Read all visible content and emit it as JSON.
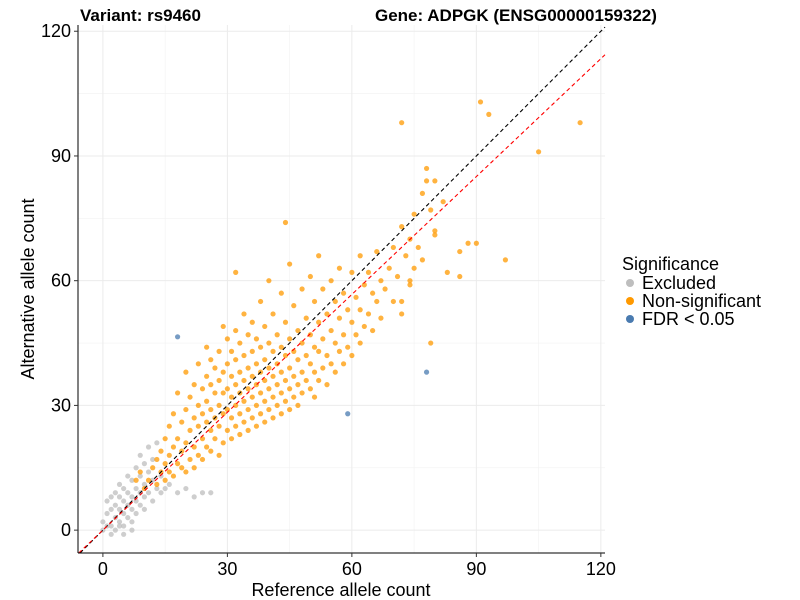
{
  "chart_data": {
    "type": "scatter",
    "title_left": "Variant: rs9460",
    "title_right": "Gene: ADPGK (ENSG00000159322)",
    "xlabel": "Reference allele count",
    "ylabel": "Alternative allele count",
    "xlim": [
      -6,
      121
    ],
    "ylim": [
      -5.5,
      121.5
    ],
    "xticks": [
      0,
      30,
      60,
      90,
      120
    ],
    "yticks": [
      0,
      30,
      60,
      90,
      120
    ],
    "xtick_labels": [
      "0",
      "30",
      "60",
      "90",
      "120"
    ],
    "ytick_labels": [
      "0",
      "30",
      "60",
      "90",
      "120"
    ],
    "grid": true,
    "reference_lines": [
      {
        "name": "identity",
        "slope": 1,
        "intercept": 0,
        "color": "#000000",
        "style": "dashed"
      },
      {
        "name": "fit",
        "slope": 0.945,
        "intercept": 0,
        "color": "#FF0000",
        "style": "dashed"
      }
    ],
    "legend": {
      "title": "Significance",
      "placement": "right",
      "entries": [
        {
          "label": "Excluded",
          "color": "#BEBEBE"
        },
        {
          "label": "Non-significant",
          "color": "#FF9900"
        },
        {
          "label": "FDR < 0.05",
          "color": "#4A7BB0"
        }
      ]
    },
    "series": [
      {
        "name": "Excluded",
        "color": "#BEBEBE",
        "points": [
          [
            0,
            2
          ],
          [
            1,
            4
          ],
          [
            1,
            7
          ],
          [
            2,
            1
          ],
          [
            2,
            5
          ],
          [
            2,
            8
          ],
          [
            3,
            3
          ],
          [
            3,
            6
          ],
          [
            3,
            9
          ],
          [
            4,
            2
          ],
          [
            4,
            5
          ],
          [
            4,
            8
          ],
          [
            4,
            11
          ],
          [
            5,
            1
          ],
          [
            5,
            4
          ],
          [
            5,
            7
          ],
          [
            5,
            10
          ],
          [
            6,
            3
          ],
          [
            6,
            6
          ],
          [
            6,
            9
          ],
          [
            6,
            13
          ],
          [
            7,
            2
          ],
          [
            7,
            5
          ],
          [
            7,
            8
          ],
          [
            7,
            12
          ],
          [
            8,
            4
          ],
          [
            8,
            7
          ],
          [
            8,
            10
          ],
          [
            8,
            15
          ],
          [
            9,
            6
          ],
          [
            9,
            9
          ],
          [
            9,
            13
          ],
          [
            9,
            18
          ],
          [
            10,
            5
          ],
          [
            10,
            8
          ],
          [
            10,
            11
          ],
          [
            10,
            16
          ],
          [
            11,
            9
          ],
          [
            11,
            14
          ],
          [
            11,
            20
          ],
          [
            12,
            7
          ],
          [
            12,
            12
          ],
          [
            12,
            17
          ],
          [
            13,
            10
          ],
          [
            13,
            21
          ],
          [
            14,
            9
          ],
          [
            14,
            13
          ],
          [
            15,
            10
          ],
          [
            16,
            11
          ],
          [
            18,
            9
          ],
          [
            20,
            10
          ],
          [
            22,
            8
          ],
          [
            24,
            9
          ],
          [
            26,
            9
          ],
          [
            3,
            0
          ],
          [
            5,
            -1
          ],
          [
            7,
            0
          ],
          [
            2,
            -1
          ],
          [
            1,
            1
          ],
          [
            0,
            0
          ],
          [
            4,
            1
          ]
        ]
      },
      {
        "name": "Non-significant",
        "color": "#FF9900",
        "points": [
          [
            10,
            10
          ],
          [
            11,
            12
          ],
          [
            12,
            15
          ],
          [
            13,
            11
          ],
          [
            13,
            17
          ],
          [
            14,
            14
          ],
          [
            14,
            19
          ],
          [
            15,
            12
          ],
          [
            15,
            16
          ],
          [
            15,
            22
          ],
          [
            16,
            14
          ],
          [
            16,
            18
          ],
          [
            16,
            25
          ],
          [
            17,
            13
          ],
          [
            17,
            20
          ],
          [
            17,
            28
          ],
          [
            18,
            16
          ],
          [
            18,
            22
          ],
          [
            18,
            33
          ],
          [
            19,
            15
          ],
          [
            19,
            19
          ],
          [
            19,
            26
          ],
          [
            20,
            14
          ],
          [
            20,
            21
          ],
          [
            20,
            29
          ],
          [
            20,
            38
          ],
          [
            21,
            17
          ],
          [
            21,
            24
          ],
          [
            21,
            32
          ],
          [
            22,
            15
          ],
          [
            22,
            20
          ],
          [
            22,
            27
          ],
          [
            22,
            35
          ],
          [
            23,
            18
          ],
          [
            23,
            25
          ],
          [
            23,
            30
          ],
          [
            23,
            40
          ],
          [
            24,
            17
          ],
          [
            24,
            22
          ],
          [
            24,
            28
          ],
          [
            24,
            34
          ],
          [
            25,
            20
          ],
          [
            25,
            26
          ],
          [
            25,
            31
          ],
          [
            25,
            37
          ],
          [
            25,
            44
          ],
          [
            26,
            19
          ],
          [
            26,
            24
          ],
          [
            26,
            29
          ],
          [
            26,
            35
          ],
          [
            26,
            41
          ],
          [
            27,
            22
          ],
          [
            27,
            27
          ],
          [
            27,
            33
          ],
          [
            27,
            39
          ],
          [
            28,
            18
          ],
          [
            28,
            25
          ],
          [
            28,
            30
          ],
          [
            28,
            36
          ],
          [
            28,
            43
          ],
          [
            29,
            21
          ],
          [
            29,
            28
          ],
          [
            29,
            33
          ],
          [
            29,
            38
          ],
          [
            29,
            49
          ],
          [
            30,
            24
          ],
          [
            30,
            29
          ],
          [
            30,
            34
          ],
          [
            30,
            40
          ],
          [
            30,
            46
          ],
          [
            31,
            22
          ],
          [
            31,
            27
          ],
          [
            31,
            32
          ],
          [
            31,
            37
          ],
          [
            31,
            43
          ],
          [
            32,
            25
          ],
          [
            32,
            30
          ],
          [
            32,
            35
          ],
          [
            32,
            41
          ],
          [
            32,
            48
          ],
          [
            32,
            62
          ],
          [
            33,
            23
          ],
          [
            33,
            28
          ],
          [
            33,
            33
          ],
          [
            33,
            38
          ],
          [
            33,
            45
          ],
          [
            34,
            26
          ],
          [
            34,
            31
          ],
          [
            34,
            36
          ],
          [
            34,
            42
          ],
          [
            34,
            52
          ],
          [
            35,
            24
          ],
          [
            35,
            29
          ],
          [
            35,
            34
          ],
          [
            35,
            39
          ],
          [
            35,
            47
          ],
          [
            36,
            27
          ],
          [
            36,
            32
          ],
          [
            36,
            37
          ],
          [
            36,
            43
          ],
          [
            36,
            50
          ],
          [
            37,
            25
          ],
          [
            37,
            30
          ],
          [
            37,
            35
          ],
          [
            37,
            40
          ],
          [
            37,
            46
          ],
          [
            38,
            28
          ],
          [
            38,
            33
          ],
          [
            38,
            38
          ],
          [
            38,
            44
          ],
          [
            38,
            55
          ],
          [
            39,
            26
          ],
          [
            39,
            31
          ],
          [
            39,
            36
          ],
          [
            39,
            41
          ],
          [
            39,
            49
          ],
          [
            40,
            29
          ],
          [
            40,
            34
          ],
          [
            40,
            39
          ],
          [
            40,
            45
          ],
          [
            40,
            60
          ],
          [
            41,
            27
          ],
          [
            41,
            32
          ],
          [
            41,
            37
          ],
          [
            41,
            43
          ],
          [
            41,
            52
          ],
          [
            42,
            30
          ],
          [
            42,
            35
          ],
          [
            42,
            40
          ],
          [
            42,
            47
          ],
          [
            43,
            28
          ],
          [
            43,
            33
          ],
          [
            43,
            38
          ],
          [
            43,
            44
          ],
          [
            43,
            57
          ],
          [
            44,
            31
          ],
          [
            44,
            36
          ],
          [
            44,
            42
          ],
          [
            44,
            50
          ],
          [
            45,
            29
          ],
          [
            45,
            34
          ],
          [
            45,
            39
          ],
          [
            45,
            46
          ],
          [
            45,
            64
          ],
          [
            46,
            32
          ],
          [
            46,
            37
          ],
          [
            46,
            43
          ],
          [
            46,
            54
          ],
          [
            47,
            30
          ],
          [
            47,
            35
          ],
          [
            47,
            41
          ],
          [
            47,
            48
          ],
          [
            48,
            33
          ],
          [
            48,
            38
          ],
          [
            48,
            45
          ],
          [
            48,
            58
          ],
          [
            49,
            36
          ],
          [
            49,
            42
          ],
          [
            49,
            51
          ],
          [
            50,
            34
          ],
          [
            50,
            40
          ],
          [
            50,
            47
          ],
          [
            50,
            61
          ],
          [
            51,
            32
          ],
          [
            51,
            38
          ],
          [
            51,
            44
          ],
          [
            51,
            55
          ],
          [
            52,
            36
          ],
          [
            52,
            43
          ],
          [
            52,
            50
          ],
          [
            52,
            66
          ],
          [
            53,
            39
          ],
          [
            53,
            46
          ],
          [
            53,
            58
          ],
          [
            54,
            35
          ],
          [
            54,
            42
          ],
          [
            54,
            52
          ],
          [
            55,
            40
          ],
          [
            55,
            48
          ],
          [
            55,
            60
          ],
          [
            56,
            38
          ],
          [
            56,
            45
          ],
          [
            56,
            55
          ],
          [
            57,
            43
          ],
          [
            57,
            51
          ],
          [
            57,
            63
          ],
          [
            58,
            40
          ],
          [
            58,
            47
          ],
          [
            58,
            57
          ],
          [
            59,
            44
          ],
          [
            59,
            53
          ],
          [
            60,
            42
          ],
          [
            60,
            50
          ],
          [
            60,
            62
          ],
          [
            61,
            47
          ],
          [
            61,
            56
          ],
          [
            62,
            45
          ],
          [
            62,
            53
          ],
          [
            62,
            66
          ],
          [
            63,
            49
          ],
          [
            63,
            59
          ],
          [
            64,
            52
          ],
          [
            64,
            62
          ],
          [
            65,
            48
          ],
          [
            65,
            57
          ],
          [
            66,
            55
          ],
          [
            66,
            67
          ],
          [
            67,
            51
          ],
          [
            67,
            60
          ],
          [
            68,
            58
          ],
          [
            69,
            63
          ],
          [
            70,
            55
          ],
          [
            70,
            68
          ],
          [
            71,
            61
          ],
          [
            72,
            52
          ],
          [
            72,
            73
          ],
          [
            73,
            66
          ],
          [
            74,
            59
          ],
          [
            74,
            70
          ],
          [
            75,
            63
          ],
          [
            75,
            76
          ],
          [
            76,
            68
          ],
          [
            77,
            81
          ],
          [
            79,
            77
          ],
          [
            80,
            84
          ],
          [
            82,
            79
          ],
          [
            72,
            98
          ],
          [
            91,
            103
          ],
          [
            93,
            100
          ],
          [
            115,
            98
          ],
          [
            105,
            91
          ],
          [
            78,
            87
          ],
          [
            97,
            65
          ],
          [
            88,
            69
          ],
          [
            83,
            62
          ],
          [
            77,
            65
          ],
          [
            80,
            71
          ],
          [
            86,
            61
          ],
          [
            90,
            69
          ],
          [
            86,
            67
          ],
          [
            80,
            72
          ],
          [
            79,
            45
          ],
          [
            72,
            55
          ],
          [
            74,
            60
          ],
          [
            78,
            84
          ],
          [
            44,
            74
          ],
          [
            8,
            12
          ],
          [
            9,
            14
          ]
        ]
      },
      {
        "name": "FDR < 0.05",
        "color": "#4A7BB0",
        "points": [
          [
            18,
            46.5
          ],
          [
            78,
            38
          ],
          [
            59,
            28
          ]
        ]
      }
    ]
  }
}
